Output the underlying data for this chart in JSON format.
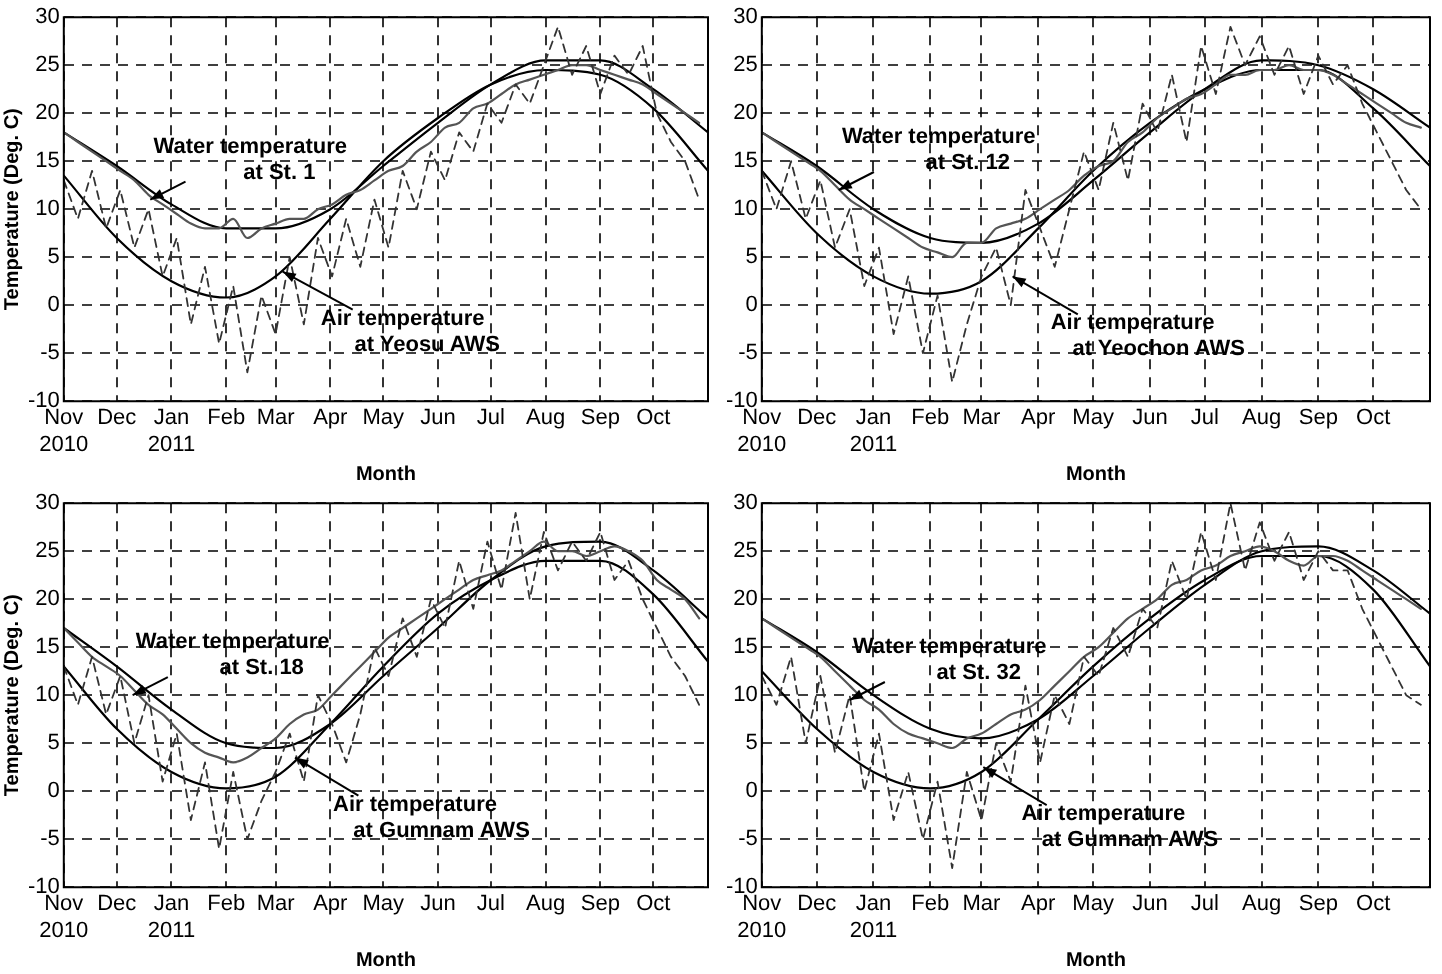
{
  "chart_data": [
    {
      "type": "line",
      "xlabel": "Month",
      "ylabel": "Temperature (Deg. C)",
      "marker": "none",
      "grid": true,
      "x": [
        "2010-11-01",
        "2010-11-09",
        "2010-11-17",
        "2010-11-25",
        "2010-12-03",
        "2010-12-11",
        "2010-12-19",
        "2010-12-27",
        "2011-01-04",
        "2011-01-12",
        "2011-01-20",
        "2011-01-28",
        "2011-02-05",
        "2011-02-13",
        "2011-02-21",
        "2011-03-01",
        "2011-03-09",
        "2011-03-17",
        "2011-03-25",
        "2011-04-02",
        "2011-04-10",
        "2011-04-18",
        "2011-04-26",
        "2011-05-04",
        "2011-05-12",
        "2011-05-20",
        "2011-05-28",
        "2011-06-05",
        "2011-06-13",
        "2011-06-21",
        "2011-06-29",
        "2011-07-07",
        "2011-07-15",
        "2011-07-23",
        "2011-07-31",
        "2011-08-08",
        "2011-08-16",
        "2011-08-24",
        "2011-09-01",
        "2011-09-09",
        "2011-09-17",
        "2011-09-25",
        "2011-10-03",
        "2011-10-11",
        "2011-10-19",
        "2011-10-27"
      ],
      "xlim": [
        "2010-11-01",
        "2011-11-01"
      ],
      "xticks": [
        {
          "value": "2010-11-01",
          "label": "Nov\n2010"
        },
        {
          "value": "2010-12-01",
          "label": "Dec"
        },
        {
          "value": "2011-01-01",
          "label": "Jan\n2011"
        },
        {
          "value": "2011-02-01",
          "label": "Feb"
        },
        {
          "value": "2011-03-01",
          "label": "Mar"
        },
        {
          "value": "2011-04-01",
          "label": "Apr"
        },
        {
          "value": "2011-05-01",
          "label": "May"
        },
        {
          "value": "2011-06-01",
          "label": "Jun"
        },
        {
          "value": "2011-07-01",
          "label": "Jul"
        },
        {
          "value": "2011-08-01",
          "label": "Aug"
        },
        {
          "value": "2011-09-01",
          "label": "Sep"
        },
        {
          "value": "2011-10-01",
          "label": "Oct"
        },
        {
          "value": "2011-11-01",
          "label": null
        }
      ],
      "ylim": [
        -10,
        30
      ],
      "yticks": [
        -10,
        -5,
        0,
        5,
        10,
        15,
        20,
        25,
        30
      ],
      "series": [
        {
          "color": "#333333",
          "line_style": "dashed",
          "values": [
            13,
            9,
            14,
            8,
            12,
            6,
            10,
            3,
            7,
            -2,
            4,
            -4,
            2,
            -7,
            1,
            -3,
            5,
            -2,
            7,
            3,
            9,
            4,
            11,
            6,
            14,
            10,
            16,
            13,
            18,
            16,
            21,
            19,
            23,
            21,
            25,
            29,
            24,
            27,
            22,
            26,
            24,
            27,
            20,
            17,
            15,
            11
          ]
        },
        {
          "color": "#555555",
          "line_style": "solid",
          "values": [
            18,
            17,
            16,
            15,
            14,
            13,
            11.5,
            10.5,
            9.5,
            8.5,
            8,
            8,
            9,
            7,
            8,
            8.5,
            9,
            9,
            10,
            10.5,
            11.5,
            12,
            13,
            14,
            14.5,
            16,
            17,
            18.5,
            19,
            20.5,
            21,
            22,
            23,
            23.5,
            24,
            24.5,
            25,
            25,
            24.5,
            24,
            23.5,
            23,
            22,
            21,
            20,
            19
          ]
        },
        {
          "color": "#000000",
          "line_style": "solid",
          "x": [
            "2010-11-01",
            "2010-12-01",
            "2011-01-01",
            "2011-02-01",
            "2011-03-01",
            "2011-04-01",
            "2011-05-01",
            "2011-06-01",
            "2011-07-01",
            "2011-08-01",
            "2011-09-01",
            "2011-10-01",
            "2011-11-01"
          ],
          "values": [
            18,
            14.5,
            10.5,
            8,
            8,
            10,
            14.5,
            19,
            23,
            25.5,
            25.5,
            22.5,
            18
          ]
        },
        {
          "color": "#000000",
          "line_style": "solid",
          "x": [
            "2010-11-01",
            "2010-12-01",
            "2011-01-01",
            "2011-02-01",
            "2011-03-01",
            "2011-04-01",
            "2011-05-01",
            "2011-06-01",
            "2011-07-01",
            "2011-08-01",
            "2011-09-01",
            "2011-10-01",
            "2011-11-01"
          ],
          "values": [
            13.5,
            7,
            2.5,
            0.8,
            3,
            9,
            15,
            19.5,
            23,
            24.5,
            24,
            20.5,
            14
          ]
        }
      ],
      "annotations": [
        {
          "text": "Water temperature\nat St. 1",
          "x": "2010-12-20",
          "y": 11
        },
        {
          "text": "Air temperature\nat Yeosu AWS",
          "x": "2011-03-05",
          "y": 3.5
        }
      ]
    },
    {
      "type": "line",
      "xlabel": "Month",
      "marker": "none",
      "grid": true,
      "x": [
        "2010-11-01",
        "2010-11-09",
        "2010-11-17",
        "2010-11-25",
        "2010-12-03",
        "2010-12-11",
        "2010-12-19",
        "2010-12-27",
        "2011-01-04",
        "2011-01-12",
        "2011-01-20",
        "2011-01-28",
        "2011-02-05",
        "2011-02-13",
        "2011-02-21",
        "2011-03-01",
        "2011-03-09",
        "2011-03-17",
        "2011-03-25",
        "2011-04-02",
        "2011-04-10",
        "2011-04-18",
        "2011-04-26",
        "2011-05-04",
        "2011-05-12",
        "2011-05-20",
        "2011-05-28",
        "2011-06-05",
        "2011-06-13",
        "2011-06-21",
        "2011-06-29",
        "2011-07-07",
        "2011-07-15",
        "2011-07-23",
        "2011-07-31",
        "2011-08-08",
        "2011-08-16",
        "2011-08-24",
        "2011-09-01",
        "2011-09-09",
        "2011-09-17",
        "2011-09-25",
        "2011-10-03",
        "2011-10-11",
        "2011-10-19",
        "2011-10-27"
      ],
      "xlim": [
        "2010-11-01",
        "2011-11-01"
      ],
      "xticks": [
        {
          "value": "2010-11-01",
          "label": "Nov\n2010"
        },
        {
          "value": "2010-12-01",
          "label": "Dec"
        },
        {
          "value": "2011-01-01",
          "label": "Jan\n2011"
        },
        {
          "value": "2011-02-01",
          "label": "Feb"
        },
        {
          "value": "2011-03-01",
          "label": "Mar"
        },
        {
          "value": "2011-04-01",
          "label": "Apr"
        },
        {
          "value": "2011-05-01",
          "label": "May"
        },
        {
          "value": "2011-06-01",
          "label": "Jun"
        },
        {
          "value": "2011-07-01",
          "label": "Jul"
        },
        {
          "value": "2011-08-01",
          "label": "Aug"
        },
        {
          "value": "2011-09-01",
          "label": "Sep"
        },
        {
          "value": "2011-10-01",
          "label": "Oct"
        },
        {
          "value": "2011-11-01",
          "label": null
        }
      ],
      "ylim": [
        -10,
        30
      ],
      "yticks": [
        -10,
        -5,
        0,
        5,
        10,
        15,
        20,
        25,
        30
      ],
      "series": [
        {
          "color": "#333333",
          "line_style": "dashed",
          "values": [
            14,
            10,
            15,
            9,
            13,
            6,
            10,
            2,
            6,
            -3,
            3,
            -5,
            1,
            -8,
            -2,
            3,
            6,
            0,
            12,
            8,
            4,
            10,
            16,
            12,
            19,
            13,
            21,
            18,
            24,
            17,
            27,
            22,
            29,
            25,
            28,
            24,
            27,
            22,
            26,
            23,
            25,
            21,
            18,
            15,
            12,
            10
          ]
        },
        {
          "color": "#555555",
          "line_style": "solid",
          "values": [
            18,
            17,
            16,
            15,
            14,
            12.5,
            11,
            10,
            9,
            8,
            7,
            6,
            5.5,
            5,
            6.5,
            6.5,
            8,
            8.5,
            9,
            10,
            11,
            12,
            13.5,
            14.5,
            15,
            17,
            18,
            19.5,
            20.5,
            21.5,
            22,
            23,
            24,
            24,
            24.5,
            24.5,
            25,
            24.5,
            24.5,
            24,
            23,
            22,
            21,
            20,
            19,
            18.5
          ]
        },
        {
          "color": "#000000",
          "line_style": "solid",
          "x": [
            "2010-11-01",
            "2010-12-01",
            "2011-01-01",
            "2011-02-01",
            "2011-03-01",
            "2011-04-01",
            "2011-05-01",
            "2011-06-01",
            "2011-07-01",
            "2011-08-01",
            "2011-09-01",
            "2011-10-01",
            "2011-11-01"
          ],
          "values": [
            18,
            14.5,
            10,
            7,
            6.5,
            8.5,
            13,
            18,
            22.5,
            25.5,
            25,
            22.5,
            18.5
          ]
        },
        {
          "color": "#000000",
          "line_style": "solid",
          "x": [
            "2010-11-01",
            "2010-12-01",
            "2011-01-01",
            "2011-02-01",
            "2011-03-01",
            "2011-04-01",
            "2011-05-01",
            "2011-06-01",
            "2011-07-01",
            "2011-08-01",
            "2011-09-01",
            "2011-10-01",
            "2011-11-01"
          ],
          "values": [
            14,
            7.5,
            3,
            1.2,
            2.5,
            8,
            14,
            19,
            22.5,
            24.5,
            24.5,
            20.5,
            14.5
          ]
        }
      ],
      "annotations": [
        {
          "text": "Water temperature\nat St. 12",
          "x": "2010-12-13",
          "y": 12
        },
        {
          "text": "Air temperature\nat Yeochon AWS",
          "x": "2011-03-18",
          "y": 3
        }
      ]
    },
    {
      "type": "line",
      "xlabel": "Month",
      "ylabel": "Temperature (Deg. C)",
      "marker": "none",
      "grid": true,
      "x": [
        "2010-11-01",
        "2010-11-09",
        "2010-11-17",
        "2010-11-25",
        "2010-12-03",
        "2010-12-11",
        "2010-12-19",
        "2010-12-27",
        "2011-01-04",
        "2011-01-12",
        "2011-01-20",
        "2011-01-28",
        "2011-02-05",
        "2011-02-13",
        "2011-02-21",
        "2011-03-01",
        "2011-03-09",
        "2011-03-17",
        "2011-03-25",
        "2011-04-02",
        "2011-04-10",
        "2011-04-18",
        "2011-04-26",
        "2011-05-04",
        "2011-05-12",
        "2011-05-20",
        "2011-05-28",
        "2011-06-05",
        "2011-06-13",
        "2011-06-21",
        "2011-06-29",
        "2011-07-07",
        "2011-07-15",
        "2011-07-23",
        "2011-07-31",
        "2011-08-08",
        "2011-08-16",
        "2011-08-24",
        "2011-09-01",
        "2011-09-09",
        "2011-09-17",
        "2011-09-25",
        "2011-10-03",
        "2011-10-11",
        "2011-10-19",
        "2011-10-27"
      ],
      "xlim": [
        "2010-11-01",
        "2011-11-01"
      ],
      "xticks": [
        {
          "value": "2010-11-01",
          "label": "Nov\n2010"
        },
        {
          "value": "2010-12-01",
          "label": "Dec"
        },
        {
          "value": "2011-01-01",
          "label": "Jan\n2011"
        },
        {
          "value": "2011-02-01",
          "label": "Feb"
        },
        {
          "value": "2011-03-01",
          "label": "Mar"
        },
        {
          "value": "2011-04-01",
          "label": "Apr"
        },
        {
          "value": "2011-05-01",
          "label": "May"
        },
        {
          "value": "2011-06-01",
          "label": "Jun"
        },
        {
          "value": "2011-07-01",
          "label": "Jul"
        },
        {
          "value": "2011-08-01",
          "label": "Aug"
        },
        {
          "value": "2011-09-01",
          "label": "Sep"
        },
        {
          "value": "2011-10-01",
          "label": "Oct"
        },
        {
          "value": "2011-11-01",
          "label": null
        }
      ],
      "ylim": [
        -10,
        30
      ],
      "yticks": [
        -10,
        -5,
        0,
        5,
        10,
        15,
        20,
        25,
        30
      ],
      "series": [
        {
          "color": "#333333",
          "line_style": "dashed",
          "values": [
            13,
            9,
            14,
            8,
            12,
            5,
            10,
            1,
            6,
            -3,
            3,
            -6,
            2,
            -5,
            -1,
            2,
            6,
            1,
            10,
            7,
            3,
            8,
            15,
            12,
            18,
            14,
            20,
            17,
            24,
            19,
            26,
            21,
            29,
            20,
            27,
            23,
            26,
            24,
            27,
            22,
            24,
            20,
            17,
            14,
            12,
            9
          ]
        },
        {
          "color": "#555555",
          "line_style": "solid",
          "values": [
            17,
            15.5,
            14,
            13,
            12,
            10.5,
            9,
            8,
            6.5,
            5,
            4,
            3.5,
            3,
            3.5,
            4.5,
            5.5,
            7,
            8,
            8.5,
            10,
            11.5,
            13,
            14.5,
            16,
            17,
            18,
            19,
            20,
            21,
            22,
            22.5,
            23,
            24,
            25,
            26,
            25,
            25,
            24.5,
            25,
            25.5,
            25,
            24,
            22,
            21,
            20,
            18
          ]
        },
        {
          "color": "#000000",
          "line_style": "solid",
          "x": [
            "2010-11-01",
            "2010-12-01",
            "2011-01-01",
            "2011-02-01",
            "2011-03-01",
            "2011-04-01",
            "2011-05-01",
            "2011-06-01",
            "2011-07-01",
            "2011-08-01",
            "2011-09-01",
            "2011-10-01",
            "2011-11-01"
          ],
          "values": [
            17,
            13,
            8.5,
            5,
            4.5,
            7,
            12,
            17,
            22,
            25.5,
            26,
            23,
            18
          ]
        },
        {
          "color": "#000000",
          "line_style": "solid",
          "x": [
            "2010-11-01",
            "2010-12-01",
            "2011-01-01",
            "2011-02-01",
            "2011-03-01",
            "2011-04-01",
            "2011-05-01",
            "2011-06-01",
            "2011-07-01",
            "2011-08-01",
            "2011-09-01",
            "2011-10-01",
            "2011-11-01"
          ],
          "values": [
            13,
            6.5,
            2,
            0.3,
            1.5,
            7,
            13,
            18.5,
            22,
            24,
            24,
            20.5,
            13.5
          ]
        }
      ],
      "annotations": [
        {
          "text": "Water temperature\nat St. 18",
          "x": "2010-12-10",
          "y": 10
        },
        {
          "text": "Air temperature\nat Gumnam AWS",
          "x": "2011-03-12",
          "y": 3.5
        }
      ]
    },
    {
      "type": "line",
      "xlabel": "Month",
      "marker": "none",
      "grid": true,
      "x": [
        "2010-11-01",
        "2010-11-09",
        "2010-11-17",
        "2010-11-25",
        "2010-12-03",
        "2010-12-11",
        "2010-12-19",
        "2010-12-27",
        "2011-01-04",
        "2011-01-12",
        "2011-01-20",
        "2011-01-28",
        "2011-02-05",
        "2011-02-13",
        "2011-02-21",
        "2011-03-01",
        "2011-03-09",
        "2011-03-17",
        "2011-03-25",
        "2011-04-02",
        "2011-04-10",
        "2011-04-18",
        "2011-04-26",
        "2011-05-04",
        "2011-05-12",
        "2011-05-20",
        "2011-05-28",
        "2011-06-05",
        "2011-06-13",
        "2011-06-21",
        "2011-06-29",
        "2011-07-07",
        "2011-07-15",
        "2011-07-23",
        "2011-07-31",
        "2011-08-08",
        "2011-08-16",
        "2011-08-24",
        "2011-09-01",
        "2011-09-09",
        "2011-09-17",
        "2011-09-25",
        "2011-10-03",
        "2011-10-11",
        "2011-10-19",
        "2011-10-27"
      ],
      "xlim": [
        "2010-11-01",
        "2011-11-01"
      ],
      "xticks": [
        {
          "value": "2010-11-01",
          "label": "Nov\n2010"
        },
        {
          "value": "2010-12-01",
          "label": "Dec"
        },
        {
          "value": "2011-01-01",
          "label": "Jan\n2011"
        },
        {
          "value": "2011-02-01",
          "label": "Feb"
        },
        {
          "value": "2011-03-01",
          "label": "Mar"
        },
        {
          "value": "2011-04-01",
          "label": "Apr"
        },
        {
          "value": "2011-05-01",
          "label": "May"
        },
        {
          "value": "2011-06-01",
          "label": "Jun"
        },
        {
          "value": "2011-07-01",
          "label": "Jul"
        },
        {
          "value": "2011-08-01",
          "label": "Aug"
        },
        {
          "value": "2011-09-01",
          "label": "Sep"
        },
        {
          "value": "2011-10-01",
          "label": "Oct"
        },
        {
          "value": "2011-11-01",
          "label": null
        }
      ],
      "ylim": [
        -10,
        30
      ],
      "yticks": [
        -10,
        -5,
        0,
        5,
        10,
        15,
        20,
        25,
        30
      ],
      "series": [
        {
          "color": "#333333",
          "line_style": "dashed",
          "values": [
            12,
            9,
            14,
            5,
            12,
            4,
            10,
            0,
            6,
            -3,
            2,
            -5,
            1,
            -8,
            2,
            -3,
            5,
            1,
            11,
            3,
            10,
            7,
            14,
            12,
            17,
            14,
            19,
            17,
            24,
            20,
            27,
            22,
            30,
            23,
            28,
            24,
            27,
            22,
            25,
            23,
            23,
            19,
            16,
            13,
            10,
            9
          ]
        },
        {
          "color": "#555555",
          "line_style": "solid",
          "values": [
            18,
            17,
            16,
            15,
            14,
            12.5,
            11,
            9.5,
            8.5,
            7,
            6,
            5.5,
            5,
            4.5,
            5.5,
            6,
            7,
            8,
            8.5,
            9.5,
            11,
            12.5,
            14,
            15,
            16.5,
            18,
            19,
            20,
            21.5,
            22,
            23,
            23.5,
            24.5,
            25,
            25.5,
            25,
            24,
            23.5,
            24.5,
            24.5,
            24,
            23,
            22,
            21,
            20,
            19
          ]
        },
        {
          "color": "#000000",
          "line_style": "solid",
          "x": [
            "2010-11-01",
            "2010-12-01",
            "2011-01-01",
            "2011-02-01",
            "2011-03-01",
            "2011-04-01",
            "2011-05-01",
            "2011-06-01",
            "2011-07-01",
            "2011-08-01",
            "2011-09-01",
            "2011-10-01",
            "2011-11-01"
          ],
          "values": [
            18,
            14.5,
            10,
            6.5,
            5.5,
            7.5,
            12,
            17,
            21.5,
            25,
            25.5,
            23,
            18.5
          ]
        },
        {
          "color": "#000000",
          "line_style": "solid",
          "x": [
            "2010-11-01",
            "2010-12-01",
            "2011-01-01",
            "2011-02-01",
            "2011-03-01",
            "2011-04-01",
            "2011-05-01",
            "2011-06-01",
            "2011-07-01",
            "2011-08-01",
            "2011-09-01",
            "2011-10-01",
            "2011-11-01"
          ],
          "values": [
            12.5,
            6.5,
            2,
            0.3,
            2,
            7.5,
            13,
            18,
            22,
            24.5,
            24.5,
            21,
            13
          ]
        }
      ],
      "annotations": [
        {
          "text": "Water temperature\nat St. 32",
          "x": "2010-12-19",
          "y": 9.5
        },
        {
          "text": "Air temperature\nat Gumnam AWS",
          "x": "2011-03-02",
          "y": 2.5
        }
      ]
    }
  ]
}
